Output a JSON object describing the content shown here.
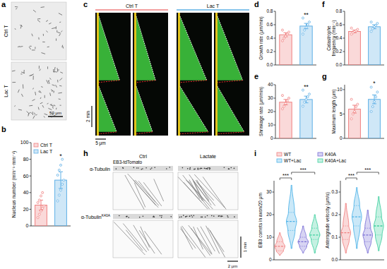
{
  "figure": {
    "panel_labels": [
      "a",
      "b",
      "c",
      "d",
      "e",
      "f",
      "g",
      "h",
      "i"
    ],
    "panel_a": {
      "rows": [
        "Ctrl T",
        "Lac T"
      ],
      "scale_bar": "50 μm"
    },
    "panel_c": {
      "groups": [
        "Ctrl T",
        "Lac T"
      ],
      "time_bar": "2 min",
      "scale_bar": "5 μm"
    },
    "panel_h": {
      "columns": [
        "Ctrl",
        "Lactate"
      ],
      "strip_label": "EB3-tdTomato",
      "rows": [
        {
          "text": "α-Tubulin"
        },
        {
          "text": "α-Tubulin",
          "sup": "K40A"
        }
      ],
      "scale_bar": "2 μm",
      "time_bar": "1 min"
    }
  },
  "chart_data": [
    {
      "type": "bar",
      "y_label": "Nucleus number (min⁻¹·mm⁻²)",
      "categories": [
        "Ctrl T",
        "Lac T"
      ],
      "values": [
        25,
        55
      ],
      "errors": [
        6,
        10
      ],
      "points": [
        [
          10,
          14,
          18,
          21,
          24,
          28,
          31,
          36,
          40
        ],
        [
          30,
          37,
          43,
          50,
          55,
          61,
          67,
          73,
          80
        ]
      ],
      "colors": [
        "#f08080",
        "#5fb0e6"
      ],
      "ylim": [
        0,
        100
      ],
      "yticks": [
        0,
        20,
        40,
        60,
        80,
        100
      ],
      "legend": "top-left",
      "tick_labels": "y",
      "annotations": [
        {
          "text": "*",
          "x": "Lac T"
        }
      ]
    },
    {
      "type": "bar",
      "y_label": "Growth rate (μm/min)",
      "categories": [
        "Ctrl T",
        "Lac T"
      ],
      "values": [
        0.45,
        0.58
      ],
      "errors": [
        0.03,
        0.04
      ],
      "points": [
        [
          0.36,
          0.4,
          0.43,
          0.46,
          0.49,
          0.52
        ],
        [
          0.46,
          0.52,
          0.56,
          0.6,
          0.64,
          0.7
        ]
      ],
      "colors": [
        "#f08080",
        "#5fb0e6"
      ],
      "ylim": [
        0,
        0.8
      ],
      "yticks": [
        {
          "value": 0,
          "label": "0.0"
        },
        0.2,
        0.4,
        0.6,
        0.8
      ],
      "tick_labels": "y",
      "annotations": [
        {
          "text": "**",
          "x": "Lac T"
        }
      ]
    },
    {
      "type": "bar",
      "y_label": "Shrinkage rate (μm/min)",
      "categories": [
        "Ctrl T",
        "Lac T"
      ],
      "values": [
        27,
        29
      ],
      "errors": [
        2,
        2.5
      ],
      "points": [
        [
          22,
          24,
          26,
          28,
          30,
          32
        ],
        [
          24,
          27,
          29,
          31,
          33,
          36
        ]
      ],
      "colors": [
        "#f08080",
        "#5fb0e6"
      ],
      "ylim": [
        0,
        40
      ],
      "yticks": [
        0,
        10,
        20,
        30,
        40
      ],
      "tick_labels": "y",
      "annotations": [
        {
          "text": "**",
          "x": "Lac T"
        }
      ]
    },
    {
      "type": "bar",
      "y_label": [
        "Catastrophe",
        "frequency (min⁻¹)"
      ],
      "categories": [
        "Ctrl T",
        "Lac T"
      ],
      "values": [
        0.5,
        0.57
      ],
      "errors": [
        0.02,
        0.03
      ],
      "points": [
        [
          0.46,
          0.48,
          0.5,
          0.51,
          0.53,
          0.55
        ],
        [
          0.5,
          0.54,
          0.57,
          0.59,
          0.62,
          0.64
        ]
      ],
      "colors": [
        "#f08080",
        "#5fb0e6"
      ],
      "ylim": [
        0,
        0.8
      ],
      "yticks": [
        {
          "value": 0,
          "label": "0.0"
        },
        0.2,
        0.4,
        0.6,
        0.8
      ],
      "tick_labels": "y"
    },
    {
      "type": "bar",
      "y_label": "Maximum length (μm)",
      "categories": [
        "Ctrl T",
        "Lac T"
      ],
      "values": [
        6,
        8
      ],
      "errors": [
        0.8,
        0.9
      ],
      "points": [
        [
          4,
          5,
          5.5,
          6.5,
          7,
          8
        ],
        [
          5.5,
          6.5,
          7.5,
          8.5,
          9.5,
          10.5
        ]
      ],
      "colors": [
        "#f08080",
        "#5fb0e6"
      ],
      "ylim": [
        0,
        11
      ],
      "yticks": [
        0,
        5,
        10
      ],
      "tick_labels": "y",
      "annotations": [
        {
          "text": "*",
          "x": "Lac T"
        }
      ]
    },
    {
      "type": "violin",
      "legend": "top",
      "tick_labels": "y",
      "series": [
        {
          "name": "WT",
          "color": "#f08080"
        },
        {
          "name": "WT+Lac",
          "color": "#4fb3e8"
        },
        {
          "name": "K40A",
          "color": "#7b6fd6"
        },
        {
          "name": "K40A+Lac",
          "color": "#3fcf9f"
        }
      ],
      "subplots": [
        {
          "y_label": "EB3 comets in axon/20 μm",
          "ylim": [
            0,
            35
          ],
          "yticks": [
            0,
            10,
            20,
            30
          ],
          "stats": [
            [
              2,
              4,
              6,
              8,
              12
            ],
            [
              5,
              13,
              17,
              21,
              33
            ],
            [
              3,
              6,
              8,
              10,
              15
            ],
            [
              3,
              9,
              11,
              14,
              20
            ]
          ],
          "annotations": [
            {
              "text": "***",
              "from": "WT",
              "to": "WT+Lac"
            },
            {
              "text": "***",
              "from": "WT+Lac",
              "to": "K40A+Lac"
            }
          ]
        },
        {
          "y_label": "Anterograde velocity (μm/s)",
          "ylim": [
            0,
            0.35
          ],
          "yticks": [
            {
              "value": 0,
              "label": "0.0"
            },
            0.1,
            0.2,
            0.3
          ],
          "stats": [
            [
              0.03,
              0.09,
              0.12,
              0.15,
              0.25
            ],
            [
              0.05,
              0.15,
              0.19,
              0.24,
              0.32
            ],
            [
              0.03,
              0.08,
              0.11,
              0.14,
              0.22
            ],
            [
              0.04,
              0.11,
              0.15,
              0.19,
              0.28
            ]
          ],
          "annotations": [
            {
              "text": "***",
              "from": "WT",
              "to": "WT+Lac"
            },
            {
              "text": "***",
              "from": "WT+Lac",
              "to": "K40A+Lac"
            }
          ]
        }
      ]
    }
  ]
}
